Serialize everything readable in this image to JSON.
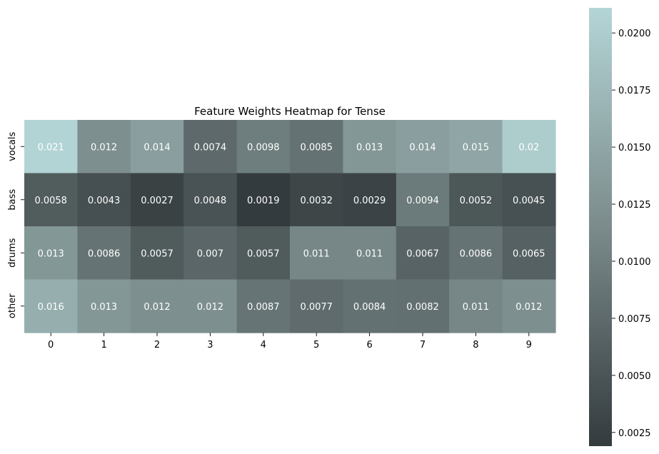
{
  "chart_data": {
    "type": "heatmap",
    "title": "Feature Weights Heatmap for Tense",
    "x_categories": [
      "0",
      "1",
      "2",
      "3",
      "4",
      "5",
      "6",
      "7",
      "8",
      "9"
    ],
    "y_categories": [
      "vocals",
      "bass",
      "drums",
      "other"
    ],
    "values": [
      [
        0.021,
        0.012,
        0.014,
        0.0074,
        0.0098,
        0.0085,
        0.013,
        0.014,
        0.015,
        0.02
      ],
      [
        0.0058,
        0.0043,
        0.0027,
        0.0048,
        0.0019,
        0.0032,
        0.0029,
        0.0094,
        0.0052,
        0.0045
      ],
      [
        0.013,
        0.0086,
        0.0057,
        0.007,
        0.0057,
        0.011,
        0.011,
        0.0067,
        0.0086,
        0.0065
      ],
      [
        0.016,
        0.013,
        0.012,
        0.012,
        0.0087,
        0.0077,
        0.0084,
        0.0082,
        0.011,
        0.012
      ]
    ],
    "annotations": [
      [
        "0.021",
        "0.012",
        "0.014",
        "0.0074",
        "0.0098",
        "0.0085",
        "0.013",
        "0.014",
        "0.015",
        "0.02"
      ],
      [
        "0.0058",
        "0.0043",
        "0.0027",
        "0.0048",
        "0.0019",
        "0.0032",
        "0.0029",
        "0.0094",
        "0.0052",
        "0.0045"
      ],
      [
        "0.013",
        "0.0086",
        "0.0057",
        "0.007",
        "0.0057",
        "0.011",
        "0.011",
        "0.0067",
        "0.0086",
        "0.0065"
      ],
      [
        "0.016",
        "0.013",
        "0.012",
        "0.012",
        "0.0087",
        "0.0077",
        "0.0084",
        "0.0082",
        "0.011",
        "0.012"
      ]
    ],
    "colorbar": {
      "min": 0.0019,
      "max": 0.0211,
      "ticks": [
        0.0025,
        0.005,
        0.0075,
        0.01,
        0.0125,
        0.015,
        0.0175,
        0.02
      ],
      "tick_labels": [
        "0.0025",
        "0.0050",
        "0.0075",
        "0.0100",
        "0.0125",
        "0.0150",
        "0.0175",
        "0.0200"
      ],
      "color_low": "#343b3e",
      "color_mid": "#7b8b8b",
      "color_high": "#b4d5d6"
    },
    "annotation_color": "#ffffff"
  }
}
